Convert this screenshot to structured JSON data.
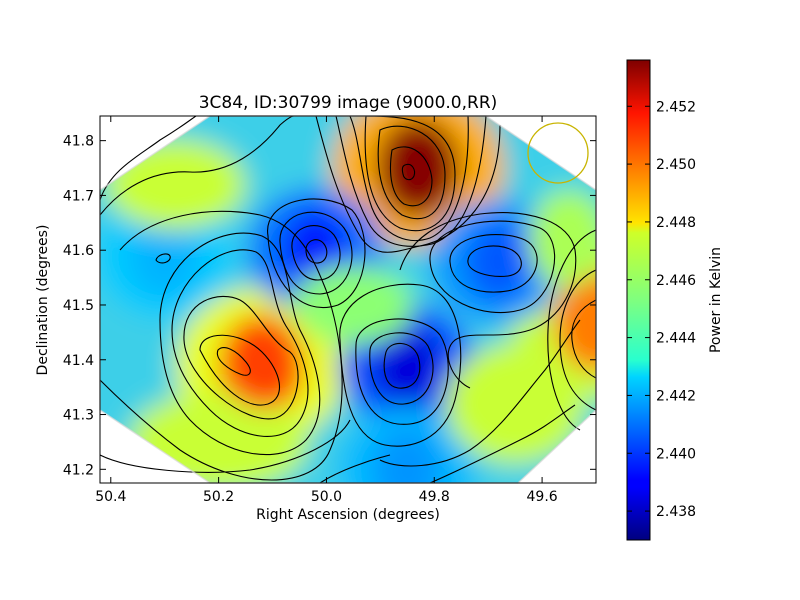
{
  "chart_data": {
    "type": "heatmap",
    "title": "3C84, ID:30799 image (9000.0,RR)",
    "xlabel": "Right Ascension (degrees)",
    "ylabel": "Declination (degrees)",
    "xlim": [
      50.42,
      49.5
    ],
    "ylim": [
      41.175,
      41.845
    ],
    "x_ticks": [
      50.4,
      50.2,
      50.0,
      49.8,
      49.6
    ],
    "x_tick_labels": [
      "50.4",
      "50.2",
      "50.0",
      "49.8",
      "49.6"
    ],
    "y_ticks": [
      41.2,
      41.3,
      41.4,
      41.5,
      41.6,
      41.7,
      41.8
    ],
    "y_tick_labels": [
      "41.2",
      "41.3",
      "41.4",
      "41.5",
      "41.6",
      "41.7",
      "41.8"
    ],
    "colorbar": {
      "label": "Power in Kelvin",
      "colormap": "jet",
      "range": [
        2.437,
        2.4536
      ],
      "ticks": [
        2.438,
        2.44,
        2.442,
        2.444,
        2.446,
        2.448,
        2.45,
        2.452
      ],
      "tick_labels": [
        "2.438",
        "2.440",
        "2.442",
        "2.444",
        "2.446",
        "2.448",
        "2.450",
        "2.452"
      ]
    },
    "contours": "black",
    "beam_circle_color": "#c8b400",
    "features": [
      {
        "ra": 49.83,
        "dec": 41.75,
        "power": 2.4535
      },
      {
        "ra": 50.12,
        "dec": 41.39,
        "power": 2.4505
      },
      {
        "ra": 49.5,
        "dec": 41.47,
        "power": 2.4495
      },
      {
        "ra": 49.85,
        "dec": 41.39,
        "power": 2.4385
      },
      {
        "ra": 50.02,
        "dec": 41.6,
        "power": 2.4395
      },
      {
        "ra": 49.68,
        "dec": 41.58,
        "power": 2.4405
      },
      {
        "ra": 49.85,
        "dec": 41.2,
        "power": 2.4415
      },
      {
        "ra": 50.3,
        "dec": 41.59,
        "power": 2.442
      }
    ]
  }
}
